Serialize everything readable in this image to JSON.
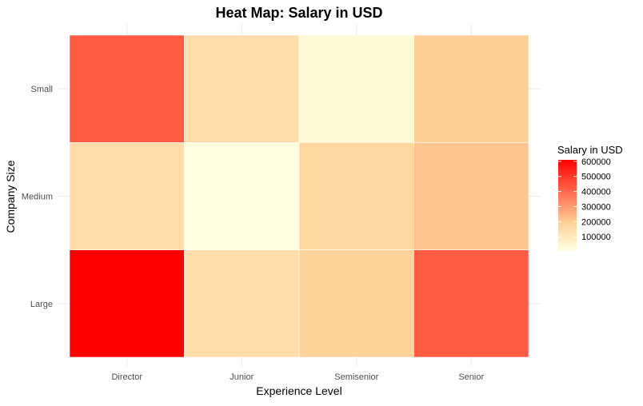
{
  "chart_data": {
    "type": "heatmap",
    "title": "Heat Map: Salary in USD",
    "xlabel": "Experience Level",
    "ylabel": "Company Size",
    "x_categories": [
      "Director",
      "Junior",
      "Semisenior",
      "Senior"
    ],
    "y_categories": [
      "Small",
      "Medium",
      "Large"
    ],
    "values": [
      [
        430000,
        145000,
        30000,
        195000
      ],
      [
        150000,
        5000,
        170000,
        215000
      ],
      [
        610000,
        145000,
        185000,
        430000
      ]
    ],
    "legend": {
      "title": "Salary in USD",
      "position": "right",
      "ticks": [
        100000,
        200000,
        300000,
        400000,
        500000,
        600000
      ],
      "tick_labels": [
        "100000",
        "200000",
        "300000",
        "400000",
        "500000",
        "600000"
      ],
      "min": 5000,
      "max": 610000
    },
    "color_scale": {
      "low": "#ffffe0",
      "mid": "#ffd39b",
      "high": "#ff0000"
    },
    "grid": true
  }
}
